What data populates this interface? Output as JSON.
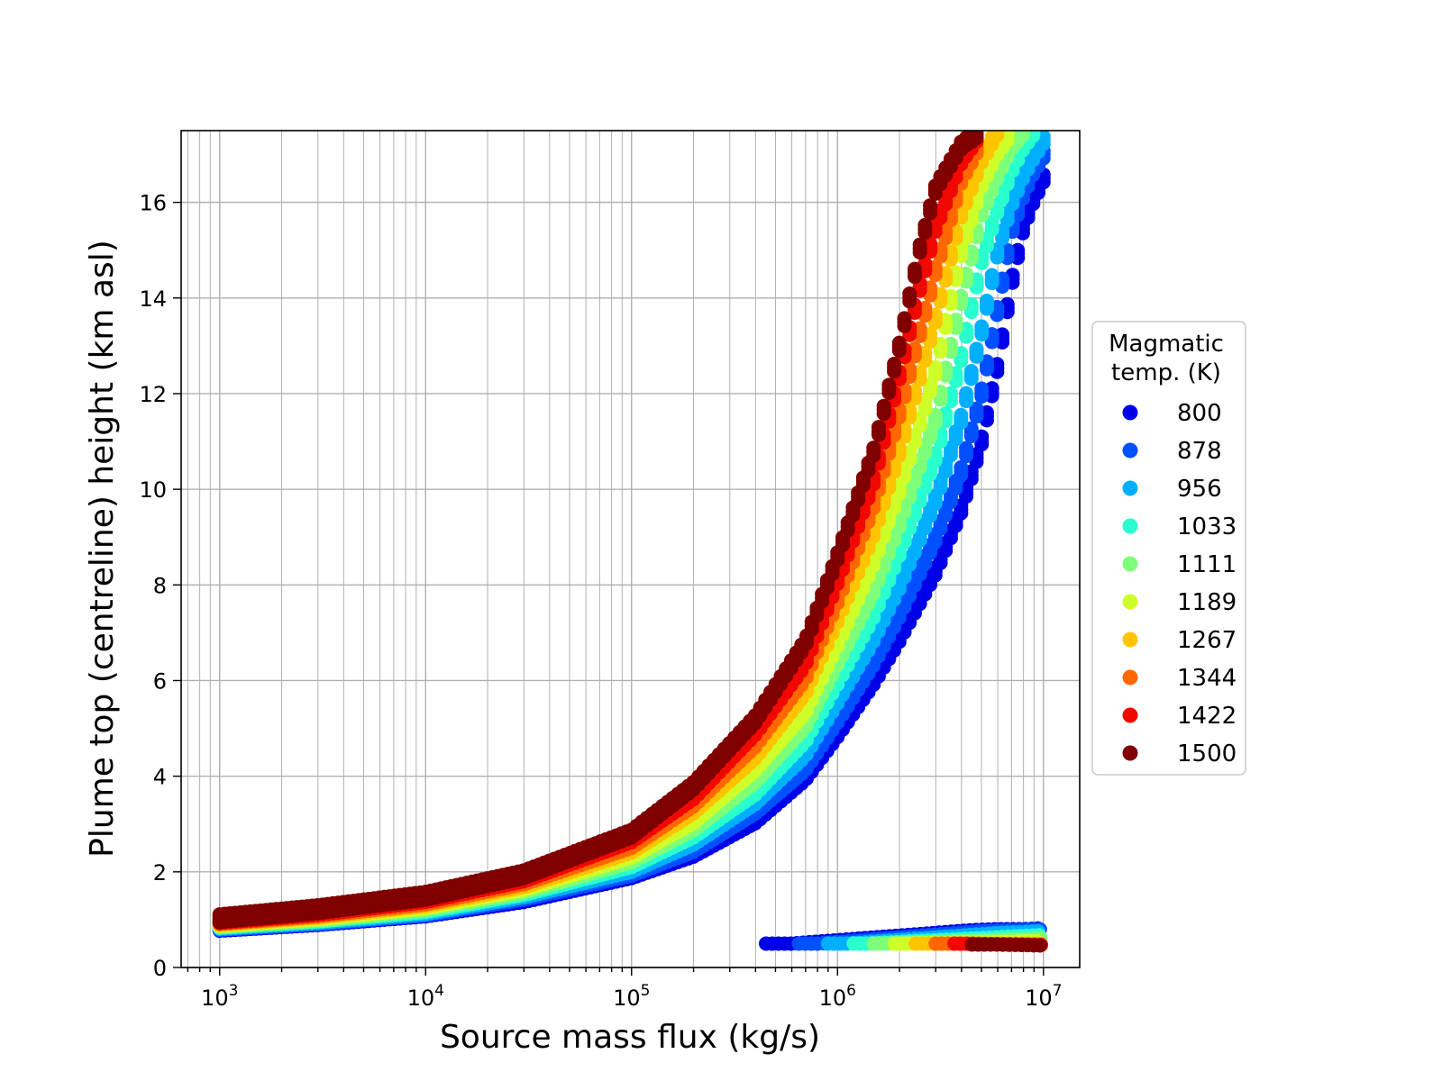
{
  "chart_data": {
    "type": "scatter",
    "title": "",
    "xlabel": "Source mass flux (kg/s)",
    "ylabel": "Plume top (centreline) height (km asl)",
    "xscale": "log",
    "xlim": [
      650,
      15000000
    ],
    "ylim": [
      0,
      17.5
    ],
    "grid": true,
    "grid_minor": true,
    "legend_placement": "right, outside plot",
    "x_tick_labels": [
      {
        "value": 1000,
        "base": "10",
        "exponent": "3"
      },
      {
        "value": 10000,
        "base": "10",
        "exponent": "4"
      },
      {
        "value": 100000,
        "base": "10",
        "exponent": "5"
      },
      {
        "value": 1000000,
        "base": "10",
        "exponent": "6"
      },
      {
        "value": 10000000,
        "base": "10",
        "exponent": "7"
      }
    ],
    "y_ticks": [
      0,
      2,
      4,
      6,
      8,
      10,
      12,
      14,
      16
    ],
    "y_tick_labels": [
      "0",
      "2",
      "4",
      "6",
      "8",
      "10",
      "12",
      "14",
      "16"
    ],
    "colorbar_quantity": "Magmatic temperature (K)",
    "legend": {
      "title_lines": [
        "Magmatic",
        "temp. (K)"
      ],
      "entries": [
        {
          "label": "800",
          "color": "#0000e8"
        },
        {
          "label": "878",
          "color": "#0050ff"
        },
        {
          "label": "956",
          "color": "#00b0ff"
        },
        {
          "label": "1033",
          "color": "#29ffce"
        },
        {
          "label": "1111",
          "color": "#7dff7a"
        },
        {
          "label": "1189",
          "color": "#ceff29"
        },
        {
          "label": "1267",
          "color": "#ffc400"
        },
        {
          "label": "1344",
          "color": "#ff6800"
        },
        {
          "label": "1422",
          "color": "#f10800"
        },
        {
          "label": "1500",
          "color": "#800000"
        }
      ]
    },
    "series": [
      {
        "name": "800",
        "color": "#0000e8",
        "points": [
          [
            1000,
            0.85
          ],
          [
            3000,
            0.97
          ],
          [
            10000,
            1.15
          ],
          [
            30000,
            1.45
          ],
          [
            100000,
            1.95
          ],
          [
            200000,
            2.4
          ],
          [
            400000,
            3.1
          ],
          [
            700000,
            4.0
          ],
          [
            1000000,
            4.9
          ],
          [
            1500000,
            6.0
          ],
          [
            2000000,
            6.9
          ],
          [
            3000000,
            8.3
          ],
          [
            4000000,
            9.6
          ],
          [
            5000000,
            11.0
          ],
          [
            6000000,
            12.6
          ],
          [
            7000000,
            14.3
          ],
          [
            8000000,
            15.5
          ],
          [
            9000000,
            16.1
          ],
          [
            10000000,
            16.5
          ]
        ]
      },
      {
        "name": "878",
        "color": "#0050ff",
        "points": [
          [
            1000,
            0.87
          ],
          [
            3000,
            0.99
          ],
          [
            10000,
            1.17
          ],
          [
            30000,
            1.5
          ],
          [
            100000,
            2.0
          ],
          [
            200000,
            2.5
          ],
          [
            400000,
            3.3
          ],
          [
            700000,
            4.2
          ],
          [
            1000000,
            5.2
          ],
          [
            1500000,
            6.4
          ],
          [
            2000000,
            7.4
          ],
          [
            3000000,
            9.0
          ],
          [
            4000000,
            10.4
          ],
          [
            5000000,
            12.0
          ],
          [
            6000000,
            13.8
          ],
          [
            7000000,
            15.4
          ],
          [
            8000000,
            16.2
          ],
          [
            9000000,
            16.7
          ],
          [
            10000000,
            17.0
          ]
        ]
      },
      {
        "name": "956",
        "color": "#00b0ff",
        "points": [
          [
            1000,
            0.89
          ],
          [
            3000,
            1.01
          ],
          [
            10000,
            1.2
          ],
          [
            30000,
            1.55
          ],
          [
            100000,
            2.08
          ],
          [
            200000,
            2.65
          ],
          [
            400000,
            3.5
          ],
          [
            700000,
            4.5
          ],
          [
            1000000,
            5.6
          ],
          [
            1500000,
            6.9
          ],
          [
            2000000,
            8.0
          ],
          [
            3000000,
            9.8
          ],
          [
            4000000,
            11.5
          ],
          [
            5000000,
            13.3
          ],
          [
            6000000,
            15.0
          ],
          [
            7000000,
            16.0
          ],
          [
            8000000,
            16.6
          ],
          [
            9000000,
            17.0
          ],
          [
            10000000,
            17.3
          ]
        ]
      },
      {
        "name": "1033",
        "color": "#29ffce",
        "points": [
          [
            1000,
            0.91
          ],
          [
            3000,
            1.04
          ],
          [
            10000,
            1.24
          ],
          [
            30000,
            1.6
          ],
          [
            100000,
            2.18
          ],
          [
            200000,
            2.8
          ],
          [
            400000,
            3.7
          ],
          [
            700000,
            4.8
          ],
          [
            1000000,
            6.0
          ],
          [
            1500000,
            7.4
          ],
          [
            2000000,
            8.7
          ],
          [
            3000000,
            10.7
          ],
          [
            4000000,
            12.8
          ],
          [
            5000000,
            14.8
          ],
          [
            6000000,
            15.9
          ],
          [
            7000000,
            16.7
          ],
          [
            8000000,
            17.2
          ],
          [
            9000000,
            17.5
          ]
        ]
      },
      {
        "name": "1111",
        "color": "#7dff7a",
        "points": [
          [
            1000,
            0.93
          ],
          [
            3000,
            1.06
          ],
          [
            10000,
            1.28
          ],
          [
            30000,
            1.65
          ],
          [
            100000,
            2.28
          ],
          [
            200000,
            2.95
          ],
          [
            400000,
            3.95
          ],
          [
            700000,
            5.1
          ],
          [
            1000000,
            6.4
          ],
          [
            1500000,
            7.9
          ],
          [
            2000000,
            9.3
          ],
          [
            3000000,
            11.5
          ],
          [
            4000000,
            14.0
          ],
          [
            5000000,
            15.8
          ],
          [
            6000000,
            16.6
          ],
          [
            7000000,
            17.2
          ],
          [
            8000000,
            17.5
          ]
        ]
      },
      {
        "name": "1189",
        "color": "#ceff29",
        "points": [
          [
            1000,
            0.95
          ],
          [
            3000,
            1.09
          ],
          [
            10000,
            1.32
          ],
          [
            30000,
            1.7
          ],
          [
            100000,
            2.38
          ],
          [
            200000,
            3.1
          ],
          [
            400000,
            4.2
          ],
          [
            700000,
            5.4
          ],
          [
            1000000,
            6.8
          ],
          [
            1500000,
            8.5
          ],
          [
            2000000,
            10.0
          ],
          [
            3000000,
            12.5
          ],
          [
            4000000,
            15.0
          ],
          [
            5000000,
            16.4
          ],
          [
            6000000,
            17.1
          ],
          [
            7000000,
            17.5
          ]
        ]
      },
      {
        "name": "1267",
        "color": "#ffc400",
        "points": [
          [
            1000,
            0.97
          ],
          [
            3000,
            1.12
          ],
          [
            10000,
            1.36
          ],
          [
            30000,
            1.76
          ],
          [
            100000,
            2.48
          ],
          [
            200000,
            3.3
          ],
          [
            400000,
            4.45
          ],
          [
            700000,
            5.8
          ],
          [
            1000000,
            7.3
          ],
          [
            1500000,
            9.1
          ],
          [
            2000000,
            10.8
          ],
          [
            3000000,
            13.6
          ],
          [
            4000000,
            15.8
          ],
          [
            5000000,
            16.9
          ],
          [
            6000000,
            17.5
          ]
        ]
      },
      {
        "name": "1344",
        "color": "#ff6800",
        "points": [
          [
            1000,
            0.99
          ],
          [
            3000,
            1.15
          ],
          [
            10000,
            1.4
          ],
          [
            30000,
            1.82
          ],
          [
            100000,
            2.58
          ],
          [
            200000,
            3.45
          ],
          [
            400000,
            4.7
          ],
          [
            700000,
            6.1
          ],
          [
            1000000,
            7.7
          ],
          [
            1500000,
            9.7
          ],
          [
            2000000,
            11.6
          ],
          [
            3000000,
            14.6
          ],
          [
            4000000,
            16.5
          ],
          [
            5000000,
            17.3
          ]
        ]
      },
      {
        "name": "1422",
        "color": "#f10800",
        "points": [
          [
            1000,
            1.01
          ],
          [
            3000,
            1.18
          ],
          [
            10000,
            1.45
          ],
          [
            30000,
            1.88
          ],
          [
            100000,
            2.7
          ],
          [
            200000,
            3.6
          ],
          [
            400000,
            4.95
          ],
          [
            700000,
            6.4
          ],
          [
            1000000,
            8.1
          ],
          [
            1500000,
            10.2
          ],
          [
            2000000,
            12.4
          ],
          [
            2500000,
            14.2
          ],
          [
            3000000,
            15.5
          ],
          [
            4000000,
            16.9
          ],
          [
            5000000,
            17.5
          ]
        ]
      },
      {
        "name": "1500",
        "color": "#800000",
        "points": [
          [
            1000,
            1.03
          ],
          [
            3000,
            1.22
          ],
          [
            10000,
            1.5
          ],
          [
            30000,
            1.95
          ],
          [
            100000,
            2.8
          ],
          [
            200000,
            3.8
          ],
          [
            400000,
            5.2
          ],
          [
            700000,
            6.8
          ],
          [
            1000000,
            8.6
          ],
          [
            1500000,
            10.8
          ],
          [
            2000000,
            13.0
          ],
          [
            2500000,
            15.0
          ],
          [
            3000000,
            16.3
          ],
          [
            4000000,
            17.2
          ],
          [
            5000000,
            17.5
          ]
        ]
      }
    ],
    "low_branch": [
      {
        "name": "800",
        "color": "#0000e8",
        "points": [
          [
            450000,
            0.5
          ],
          [
            600000,
            0.5
          ],
          [
            4500000,
            0.78
          ],
          [
            6000000,
            0.8
          ],
          [
            8000000,
            0.8
          ],
          [
            10000000,
            0.82
          ]
        ]
      },
      {
        "name": "878",
        "color": "#0050ff",
        "points": [
          [
            650000,
            0.5
          ],
          [
            800000,
            0.5
          ],
          [
            5000000,
            0.76
          ],
          [
            7000000,
            0.78
          ],
          [
            10000000,
            0.8
          ]
        ]
      },
      {
        "name": "956",
        "color": "#00b0ff",
        "points": [
          [
            900000,
            0.5
          ],
          [
            1100000,
            0.5
          ],
          [
            6000000,
            0.72
          ],
          [
            8000000,
            0.74
          ],
          [
            10000000,
            0.76
          ]
        ]
      },
      {
        "name": "1033",
        "color": "#29ffce",
        "points": [
          [
            1200000,
            0.5
          ],
          [
            1400000,
            0.5
          ],
          [
            8000000,
            0.66
          ],
          [
            10000000,
            0.68
          ]
        ]
      },
      {
        "name": "1111",
        "color": "#7dff7a",
        "points": [
          [
            1500000,
            0.5
          ],
          [
            1700000,
            0.5
          ],
          [
            9000000,
            0.6
          ],
          [
            10000000,
            0.62
          ]
        ]
      },
      {
        "name": "1189",
        "color": "#ceff29",
        "points": [
          [
            1900000,
            0.5
          ],
          [
            2200000,
            0.5
          ],
          [
            9500000,
            0.55
          ]
        ]
      },
      {
        "name": "1267",
        "color": "#ffc400",
        "points": [
          [
            2400000,
            0.5
          ],
          [
            2700000,
            0.5
          ],
          [
            10000000,
            0.5
          ]
        ]
      },
      {
        "name": "1344",
        "color": "#ff6800",
        "points": [
          [
            3000000,
            0.5
          ],
          [
            3400000,
            0.5
          ],
          [
            10000000,
            0.48
          ]
        ]
      },
      {
        "name": "1422",
        "color": "#f10800",
        "points": [
          [
            3700000,
            0.5
          ],
          [
            4200000,
            0.5
          ],
          [
            10000000,
            0.47
          ]
        ]
      },
      {
        "name": "1500",
        "color": "#800000",
        "points": [
          [
            4500000,
            0.48
          ],
          [
            6000000,
            0.48
          ],
          [
            8000000,
            0.47
          ],
          [
            10000000,
            0.46
          ]
        ]
      }
    ]
  }
}
